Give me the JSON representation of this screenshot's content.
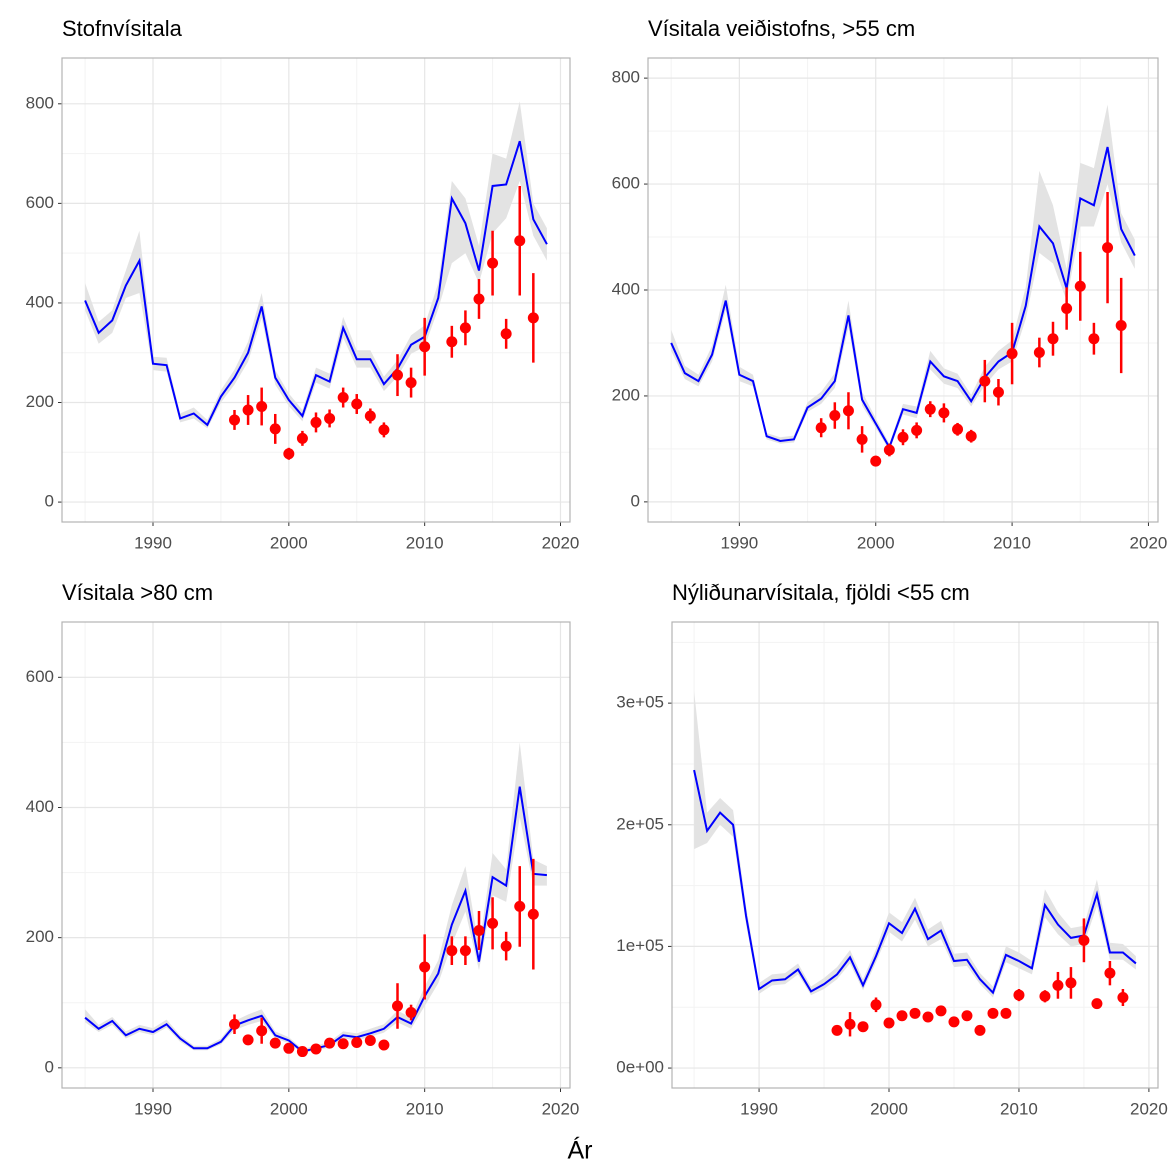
{
  "xlabel": "Ár",
  "chart_data": [
    {
      "type": "line",
      "title": "Stofnvísitala",
      "color": "#0000ff",
      "ribbon_color": "#e3e3e3",
      "point_color": "#ff0000",
      "x": [
        1985,
        1986,
        1987,
        1988,
        1989,
        1990,
        1991,
        1992,
        1993,
        1994,
        1995,
        1996,
        1997,
        1998,
        1999,
        2000,
        2001,
        2002,
        2003,
        2004,
        2005,
        2006,
        2007,
        2008,
        2009,
        2010,
        2011,
        2012,
        2013,
        2014,
        2015,
        2016,
        2017,
        2018,
        2019
      ],
      "values": [
        405,
        340,
        365,
        435,
        485,
        278,
        275,
        168,
        178,
        155,
        212,
        250,
        300,
        393,
        250,
        205,
        173,
        255,
        242,
        350,
        287,
        287,
        237,
        268,
        316,
        332,
        410,
        610,
        560,
        465,
        635,
        638,
        725,
        568,
        518
      ],
      "lower": [
        385,
        318,
        340,
        410,
        420,
        265,
        262,
        160,
        168,
        148,
        200,
        236,
        282,
        370,
        236,
        193,
        162,
        240,
        228,
        330,
        270,
        270,
        223,
        252,
        298,
        312,
        388,
        480,
        500,
        440,
        540,
        570,
        645,
        535,
        485
      ],
      "upper": [
        440,
        362,
        385,
        465,
        545,
        292,
        290,
        178,
        190,
        165,
        225,
        266,
        322,
        420,
        265,
        218,
        185,
        270,
        258,
        372,
        305,
        305,
        252,
        285,
        335,
        355,
        440,
        645,
        610,
        515,
        700,
        690,
        805,
        600,
        550
      ],
      "points": {
        "x": [
          1996,
          1997,
          1998,
          1999,
          2000,
          2001,
          2002,
          2003,
          2004,
          2005,
          2006,
          2007,
          2008,
          2009,
          2010,
          2012,
          2013,
          2014,
          2015,
          2016,
          2017,
          2018
        ],
        "values": [
          165,
          185,
          192,
          147,
          97,
          128,
          160,
          168,
          210,
          197,
          173,
          145,
          255,
          240,
          312,
          322,
          350,
          408,
          480,
          338,
          525,
          370
        ],
        "errors": [
          20,
          30,
          38,
          30,
          12,
          15,
          20,
          18,
          20,
          20,
          15,
          15,
          42,
          30,
          58,
          32,
          35,
          40,
          65,
          30,
          110,
          90
        ]
      },
      "xlim": [
        1983.3,
        2020.7
      ],
      "xticks": [
        1990,
        2000,
        2010,
        2020
      ],
      "ylim": [
        -40,
        892
      ],
      "yticks": [
        0,
        200,
        400,
        600,
        800
      ]
    },
    {
      "type": "line",
      "title": "Vísitala veiðistofns, >55 cm",
      "color": "#0000ff",
      "ribbon_color": "#e3e3e3",
      "point_color": "#ff0000",
      "x": [
        1985,
        1986,
        1987,
        1988,
        1989,
        1990,
        1991,
        1992,
        1993,
        1994,
        1995,
        1996,
        1997,
        1998,
        1999,
        2000,
        2001,
        2002,
        2003,
        2004,
        2005,
        2006,
        2007,
        2008,
        2009,
        2010,
        2011,
        2012,
        2013,
        2014,
        2015,
        2016,
        2017,
        2018,
        2019
      ],
      "values": [
        300,
        243,
        228,
        278,
        380,
        240,
        228,
        124,
        115,
        118,
        178,
        195,
        228,
        352,
        193,
        148,
        103,
        175,
        168,
        265,
        237,
        228,
        190,
        235,
        265,
        282,
        370,
        520,
        488,
        403,
        573,
        560,
        670,
        515,
        465
      ],
      "lower": [
        285,
        232,
        218,
        265,
        362,
        228,
        218,
        118,
        110,
        112,
        170,
        185,
        215,
        330,
        182,
        140,
        97,
        165,
        158,
        250,
        223,
        215,
        180,
        220,
        250,
        265,
        345,
        470,
        450,
        380,
        520,
        520,
        600,
        490,
        440
      ],
      "upper": [
        325,
        257,
        240,
        295,
        410,
        255,
        240,
        130,
        122,
        125,
        188,
        208,
        243,
        380,
        208,
        158,
        110,
        185,
        180,
        285,
        252,
        242,
        202,
        255,
        285,
        305,
        405,
        625,
        560,
        440,
        640,
        630,
        750,
        545,
        495
      ],
      "points": {
        "x": [
          1996,
          1997,
          1998,
          1999,
          2000,
          2001,
          2002,
          2003,
          2004,
          2005,
          2006,
          2007,
          2008,
          2009,
          2010,
          2012,
          2013,
          2014,
          2015,
          2016,
          2017,
          2018
        ],
        "values": [
          140,
          163,
          172,
          118,
          77,
          98,
          122,
          135,
          175,
          168,
          137,
          124,
          228,
          207,
          280,
          282,
          308,
          365,
          407,
          308,
          480,
          333
        ],
        "errors": [
          18,
          25,
          35,
          25,
          10,
          12,
          15,
          15,
          15,
          18,
          12,
          12,
          40,
          25,
          58,
          28,
          32,
          40,
          65,
          30,
          105,
          90
        ]
      },
      "xlim": [
        1983.3,
        2020.7
      ],
      "xticks": [
        1990,
        2000,
        2010,
        2020
      ],
      "ylim": [
        -38,
        838
      ],
      "yticks": [
        0,
        200,
        400,
        600,
        800
      ]
    },
    {
      "type": "line",
      "title": "Vísitala >80 cm",
      "color": "#0000ff",
      "ribbon_color": "#e3e3e3",
      "point_color": "#ff0000",
      "x": [
        1985,
        1986,
        1987,
        1988,
        1989,
        1990,
        1991,
        1992,
        1993,
        1994,
        1995,
        1996,
        1997,
        1998,
        1999,
        2000,
        2001,
        2002,
        2003,
        2004,
        2005,
        2006,
        2007,
        2008,
        2009,
        2010,
        2011,
        2012,
        2013,
        2014,
        2015,
        2016,
        2017,
        2018,
        2019
      ],
      "values": [
        77,
        60,
        72,
        50,
        60,
        55,
        67,
        45,
        30,
        30,
        40,
        65,
        73,
        80,
        50,
        42,
        25,
        30,
        35,
        50,
        47,
        53,
        60,
        78,
        68,
        110,
        145,
        220,
        272,
        163,
        293,
        280,
        432,
        298,
        296
      ],
      "lower": [
        70,
        55,
        66,
        45,
        55,
        50,
        62,
        40,
        27,
        27,
        36,
        58,
        66,
        72,
        45,
        38,
        22,
        27,
        31,
        45,
        42,
        48,
        54,
        70,
        60,
        95,
        130,
        190,
        240,
        150,
        265,
        255,
        385,
        280,
        280
      ],
      "upper": [
        90,
        66,
        78,
        56,
        66,
        61,
        74,
        50,
        34,
        34,
        45,
        72,
        82,
        90,
        56,
        47,
        29,
        34,
        40,
        56,
        53,
        60,
        67,
        88,
        77,
        125,
        165,
        250,
        310,
        185,
        330,
        305,
        500,
        320,
        310
      ],
      "points": {
        "x": [
          1996,
          1997,
          1998,
          1999,
          2000,
          2001,
          2002,
          2003,
          2004,
          2005,
          2006,
          2007,
          2008,
          2009,
          2010,
          2012,
          2013,
          2014,
          2015,
          2016,
          2017,
          2018
        ],
        "values": [
          67,
          43,
          57,
          38,
          30,
          25,
          29,
          38,
          37,
          39,
          42,
          35,
          95,
          85,
          155,
          180,
          180,
          211,
          222,
          187,
          248,
          236
        ],
        "errors": [
          15,
          8,
          20,
          8,
          6,
          5,
          5,
          6,
          6,
          6,
          8,
          6,
          35,
          12,
          50,
          22,
          22,
          30,
          40,
          22,
          62,
          85
        ]
      },
      "xlim": [
        1983.3,
        2020.7
      ],
      "xticks": [
        1990,
        2000,
        2010,
        2020
      ],
      "ylim": [
        -31,
        685
      ],
      "yticks": [
        0,
        200,
        400,
        600
      ]
    },
    {
      "type": "line",
      "title": "Nýliðunarvísitala, fjöldi <55 cm",
      "color": "#0000ff",
      "ribbon_color": "#e3e3e3",
      "point_color": "#ff0000",
      "x": [
        1985,
        1986,
        1987,
        1988,
        1989,
        1990,
        1991,
        1992,
        1993,
        1994,
        1995,
        1996,
        1997,
        1998,
        1999,
        2000,
        2001,
        2002,
        2003,
        2004,
        2005,
        2006,
        2007,
        2008,
        2009,
        2010,
        2011,
        2012,
        2013,
        2014,
        2015,
        2016,
        2017,
        2018,
        2019
      ],
      "values": [
        245000,
        195000,
        210000,
        200000,
        125000,
        65000,
        72000,
        73000,
        81000,
        63000,
        69000,
        77000,
        91000,
        68000,
        92000,
        119000,
        111000,
        131000,
        106000,
        113000,
        88000,
        89000,
        73000,
        62000,
        93000,
        88000,
        82000,
        134000,
        118000,
        107000,
        109000,
        143000,
        95000,
        95000,
        86000
      ],
      "lower": [
        180000,
        185000,
        200000,
        190000,
        118000,
        61000,
        68000,
        69000,
        77000,
        60000,
        65000,
        73000,
        86000,
        64000,
        87000,
        112000,
        104000,
        122000,
        100000,
        106000,
        83000,
        84000,
        69000,
        58000,
        87000,
        82000,
        77000,
        124000,
        110000,
        100000,
        102000,
        133000,
        89000,
        89000,
        81000
      ],
      "upper": [
        310000,
        210000,
        222000,
        212000,
        133000,
        70000,
        77000,
        78000,
        86000,
        67000,
        74000,
        83000,
        97000,
        73000,
        98000,
        128000,
        120000,
        140000,
        114000,
        121000,
        94000,
        95000,
        78000,
        67000,
        100000,
        95000,
        88000,
        147000,
        128000,
        115000,
        117000,
        155000,
        103000,
        102000,
        92000
      ],
      "points": {
        "x": [
          1996,
          1997,
          1998,
          1999,
          2000,
          2001,
          2002,
          2003,
          2004,
          2005,
          2006,
          2007,
          2008,
          2009,
          2010,
          2012,
          2013,
          2014,
          2015,
          2016,
          2017,
          2018
        ],
        "values": [
          31000,
          36000,
          34000,
          52000,
          37000,
          43000,
          45000,
          42000,
          47000,
          38000,
          43000,
          31000,
          45000,
          45000,
          60000,
          59000,
          68000,
          70000,
          105000,
          53000,
          78000,
          58000
        ],
        "errors": [
          3000,
          10000,
          4000,
          6000,
          4000,
          3000,
          3000,
          3000,
          4000,
          3000,
          3000,
          3000,
          3000,
          3000,
          5000,
          5000,
          11000,
          13000,
          18000,
          4000,
          10000,
          7000
        ]
      },
      "xlim": [
        1983.3,
        2020.7
      ],
      "xticks": [
        1990,
        2000,
        2010,
        2020
      ],
      "ylim": [
        -16400,
        366700
      ],
      "yticks": [
        {
          "value": 0,
          "label": "0e+00"
        },
        {
          "value": 100000,
          "label": "1e+05"
        },
        {
          "value": 200000,
          "label": "2e+05"
        },
        {
          "value": 300000,
          "label": "3e+05"
        }
      ]
    }
  ]
}
